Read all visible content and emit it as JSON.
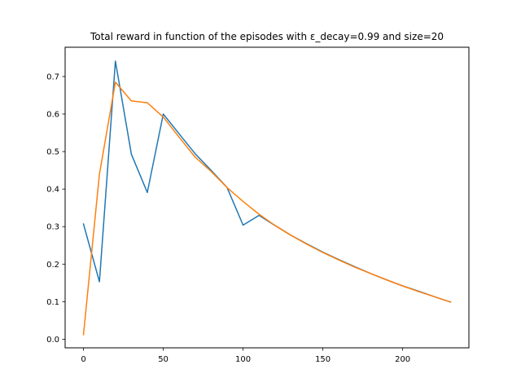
{
  "chart_data": {
    "type": "line",
    "title": "Total reward in function of the episodes with ε_decay=0.99 and size=20",
    "xlabel": "",
    "ylabel": "",
    "xlim": [
      -11.5,
      241.5
    ],
    "ylim": [
      -0.023,
      0.778
    ],
    "xticks": [
      0,
      50,
      100,
      150,
      200
    ],
    "yticks": [
      0.0,
      0.1,
      0.2,
      0.3,
      0.4,
      0.5,
      0.6,
      0.7
    ],
    "grid": false,
    "colors": [
      "#1f77b4",
      "#ff7f0e"
    ],
    "series": [
      {
        "x": [
          0,
          10,
          20,
          30,
          40,
          50,
          60,
          70,
          80,
          90,
          100,
          110,
          120,
          130,
          140,
          150,
          160,
          170,
          180,
          190,
          200,
          210,
          220,
          230
        ],
        "values": [
          0.307,
          0.153,
          0.741,
          0.493,
          0.391,
          0.6,
          0.547,
          0.494,
          0.45,
          0.404,
          0.304,
          0.33,
          0.303,
          0.277,
          0.254,
          0.232,
          0.212,
          0.193,
          0.175,
          0.158,
          0.142,
          0.128,
          0.113,
          0.099
        ]
      },
      {
        "x": [
          0,
          10,
          20,
          30,
          40,
          50,
          60,
          70,
          80,
          90,
          100,
          110,
          120,
          130,
          140,
          150,
          160,
          170,
          180,
          190,
          200,
          210,
          220,
          230
        ],
        "values": [
          0.012,
          0.44,
          0.685,
          0.635,
          0.63,
          0.592,
          0.538,
          0.485,
          0.447,
          0.404,
          0.367,
          0.333,
          0.303,
          0.277,
          0.253,
          0.231,
          0.211,
          0.192,
          0.175,
          0.158,
          0.142,
          0.127,
          0.113,
          0.099
        ]
      }
    ]
  }
}
